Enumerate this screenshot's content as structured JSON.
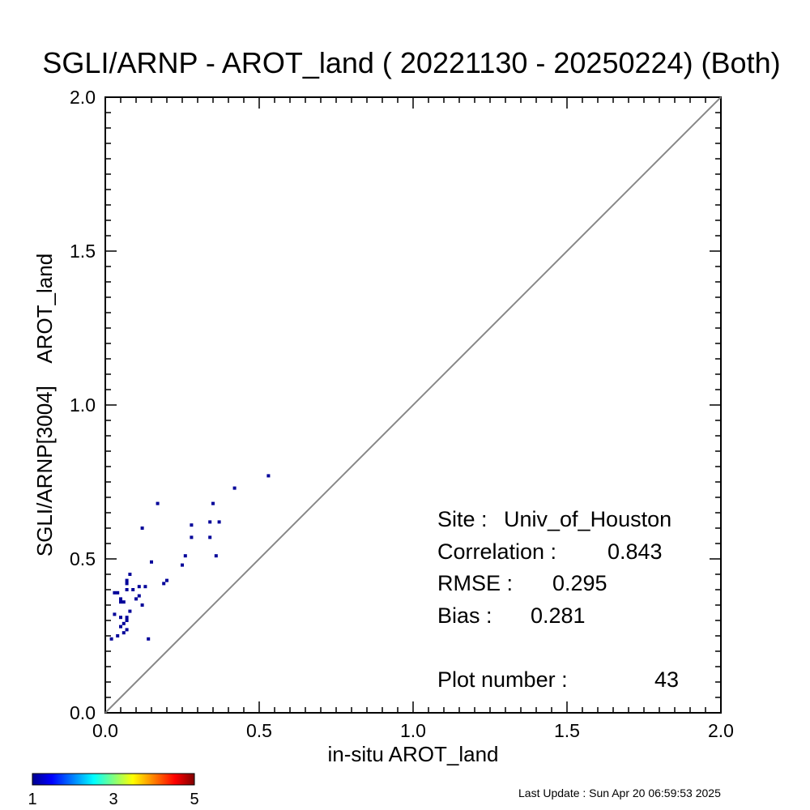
{
  "chart_data": {
    "type": "scatter",
    "title": "SGLI/ARNP - AROT_land ( 20221130 - 20250224) (Both)",
    "xlabel": "in-situ AROT_land",
    "ylabel": "SGLI/ARNP[3004]    AROT_land",
    "xlim": [
      0.0,
      2.0
    ],
    "ylim": [
      0.0,
      2.0
    ],
    "xticks": [
      "0.0",
      "0.5",
      "1.0",
      "1.5",
      "2.0"
    ],
    "yticks": [
      "0.0",
      "0.5",
      "1.0",
      "1.5",
      "2.0"
    ],
    "reference_line": "1:1",
    "grid": false,
    "points": [
      {
        "x": 0.02,
        "y": 0.24
      },
      {
        "x": 0.03,
        "y": 0.32
      },
      {
        "x": 0.03,
        "y": 0.39
      },
      {
        "x": 0.04,
        "y": 0.25
      },
      {
        "x": 0.04,
        "y": 0.39
      },
      {
        "x": 0.05,
        "y": 0.36
      },
      {
        "x": 0.05,
        "y": 0.28
      },
      {
        "x": 0.05,
        "y": 0.31
      },
      {
        "x": 0.05,
        "y": 0.37
      },
      {
        "x": 0.06,
        "y": 0.26
      },
      {
        "x": 0.06,
        "y": 0.29
      },
      {
        "x": 0.06,
        "y": 0.36
      },
      {
        "x": 0.07,
        "y": 0.27
      },
      {
        "x": 0.07,
        "y": 0.3
      },
      {
        "x": 0.07,
        "y": 0.31
      },
      {
        "x": 0.07,
        "y": 0.4
      },
      {
        "x": 0.07,
        "y": 0.42
      },
      {
        "x": 0.07,
        "y": 0.43
      },
      {
        "x": 0.08,
        "y": 0.33
      },
      {
        "x": 0.08,
        "y": 0.45
      },
      {
        "x": 0.09,
        "y": 0.4
      },
      {
        "x": 0.1,
        "y": 0.37
      },
      {
        "x": 0.11,
        "y": 0.38
      },
      {
        "x": 0.11,
        "y": 0.41
      },
      {
        "x": 0.12,
        "y": 0.35
      },
      {
        "x": 0.12,
        "y": 0.6
      },
      {
        "x": 0.13,
        "y": 0.41
      },
      {
        "x": 0.14,
        "y": 0.24
      },
      {
        "x": 0.15,
        "y": 0.49
      },
      {
        "x": 0.17,
        "y": 0.68
      },
      {
        "x": 0.19,
        "y": 0.42
      },
      {
        "x": 0.2,
        "y": 0.43
      },
      {
        "x": 0.25,
        "y": 0.48
      },
      {
        "x": 0.26,
        "y": 0.51
      },
      {
        "x": 0.28,
        "y": 0.57
      },
      {
        "x": 0.28,
        "y": 0.61
      },
      {
        "x": 0.34,
        "y": 0.57
      },
      {
        "x": 0.34,
        "y": 0.62
      },
      {
        "x": 0.35,
        "y": 0.68
      },
      {
        "x": 0.36,
        "y": 0.51
      },
      {
        "x": 0.37,
        "y": 0.62
      },
      {
        "x": 0.42,
        "y": 0.73
      },
      {
        "x": 0.53,
        "y": 0.77
      }
    ],
    "point_color": "#000099",
    "colorbar": {
      "min_label": "1",
      "mid_label": "3",
      "max_label": "5",
      "colors": [
        "#00008f",
        "#0000ff",
        "#00ffff",
        "#ffff00",
        "#ff0000",
        "#800000"
      ]
    },
    "stats": {
      "site_label": "Site :",
      "site_value": "Univ_of_Houston",
      "correlation_label": "Correlation :",
      "correlation_value": "0.843",
      "rmse_label": "RMSE :",
      "rmse_value": "0.295",
      "bias_label": "Bias :",
      "bias_value": "0.281",
      "plot_number_label": "Plot number :",
      "plot_number_value": "43"
    },
    "footer": "Last Update : Sun Apr 20 06:59:53 2025"
  }
}
